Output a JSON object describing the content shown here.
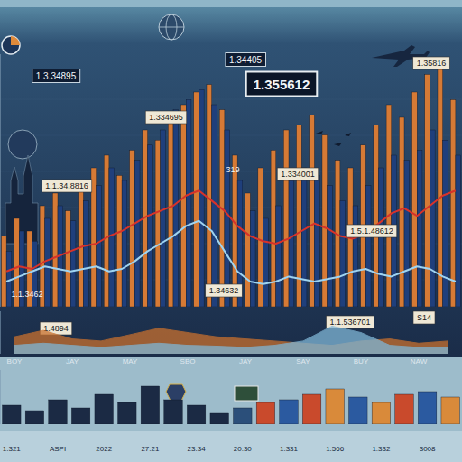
{
  "chart_data": [
    {
      "type": "bar",
      "tick_labels": false,
      "ylim": [
        0,
        100
      ],
      "categories": [
        null,
        null,
        null,
        null,
        null,
        null,
        null,
        null,
        null,
        null,
        null,
        null,
        null,
        null,
        null,
        null,
        null,
        null,
        null,
        null,
        null,
        null,
        null,
        null,
        null,
        null,
        null,
        null,
        null,
        null,
        null,
        null,
        null,
        null,
        null,
        null
      ],
      "series": [
        {
          "color": "#d67a35",
          "values": [
            28,
            35,
            30,
            40,
            45,
            38,
            50,
            55,
            60,
            52,
            62,
            70,
            66,
            74,
            80,
            85,
            88,
            78,
            60,
            45,
            55,
            62,
            70,
            72,
            76,
            68,
            58,
            55,
            64,
            72,
            80,
            75,
            85,
            92,
            96,
            82
          ]
        },
        {
          "color": "#1f3f7c",
          "values": [
            22,
            30,
            26,
            35,
            40,
            34,
            42,
            48,
            55,
            50,
            58,
            64,
            70,
            78,
            82,
            86,
            80,
            70,
            50,
            38,
            35,
            40,
            50,
            55,
            52,
            48,
            42,
            40,
            48,
            55,
            60,
            58,
            62,
            70,
            66,
            60
          ]
        },
        {
          "type": "line",
          "color": "#d8322a",
          "values": [
            14,
            16,
            15,
            18,
            20,
            22,
            24,
            25,
            28,
            30,
            33,
            36,
            38,
            40,
            44,
            46,
            42,
            38,
            32,
            28,
            26,
            25,
            27,
            30,
            33,
            31,
            28,
            27,
            29,
            33,
            37,
            39,
            36,
            40,
            44,
            46
          ]
        },
        {
          "type": "line",
          "color": "#9fd4f0",
          "values": [
            10,
            12,
            14,
            16,
            15,
            14,
            15,
            16,
            14,
            15,
            18,
            22,
            25,
            28,
            32,
            34,
            30,
            22,
            14,
            10,
            9,
            10,
            12,
            11,
            10,
            11,
            12,
            14,
            15,
            13,
            12,
            14,
            16,
            15,
            12,
            10
          ]
        }
      ],
      "annotations": [
        "1.3.34895",
        "1.34405",
        "1.355612",
        "1.35816",
        "1.334695",
        "1.1.34.8816",
        "1.334001",
        "1.5.1.48612",
        "1.1.3462",
        "1.34632",
        "1.4894",
        "1.1.536701",
        "S14",
        "319"
      ]
    },
    {
      "type": "area",
      "tick_labels": "x",
      "ylim": [
        0,
        100
      ],
      "categories": [
        "BOY",
        null,
        "JAY",
        null,
        "MAY",
        null,
        "SBO",
        null,
        "JAY",
        null,
        "SAY",
        null,
        "BUY",
        null,
        "NAW",
        null
      ],
      "series": [
        {
          "color": "#c8702e",
          "values": [
            40,
            55,
            35,
            30,
            45,
            60,
            50,
            40,
            35,
            30,
            25,
            20,
            30,
            35,
            25,
            30
          ]
        },
        {
          "color": "#7fb6d6",
          "values": [
            20,
            25,
            20,
            15,
            20,
            25,
            20,
            18,
            15,
            20,
            30,
            65,
            50,
            20,
            15,
            15
          ]
        }
      ]
    },
    {
      "type": "bar",
      "tick_labels": "x",
      "ylim": [
        0,
        100
      ],
      "categories": [
        "1.321",
        null,
        "ASPI",
        null,
        "2022",
        null,
        "27.21",
        null,
        "23.34",
        null,
        "20.30",
        null,
        "1.331",
        null,
        "1.566",
        null,
        "1.332",
        null,
        "3008",
        null
      ],
      "values": [
        35,
        25,
        45,
        30,
        55,
        40,
        70,
        45,
        35,
        20,
        30,
        40,
        45,
        55,
        65,
        50,
        40,
        55,
        60,
        50
      ],
      "colors": [
        "#1b2a44",
        "#1b2a44",
        "#1b2a44",
        "#1b2a44",
        "#1b2a44",
        "#1b2a44",
        "#1b2a44",
        "#1b2a44",
        "#1b2a44",
        "#1b2a44",
        "#2b4f7a",
        "#c94a2c",
        "#2b5aa0",
        "#c94a2c",
        "#d98a3a",
        "#2b5aa0",
        "#d98a3a",
        "#c94a2c",
        "#2b5aa0",
        "#d98a3a"
      ]
    }
  ]
}
